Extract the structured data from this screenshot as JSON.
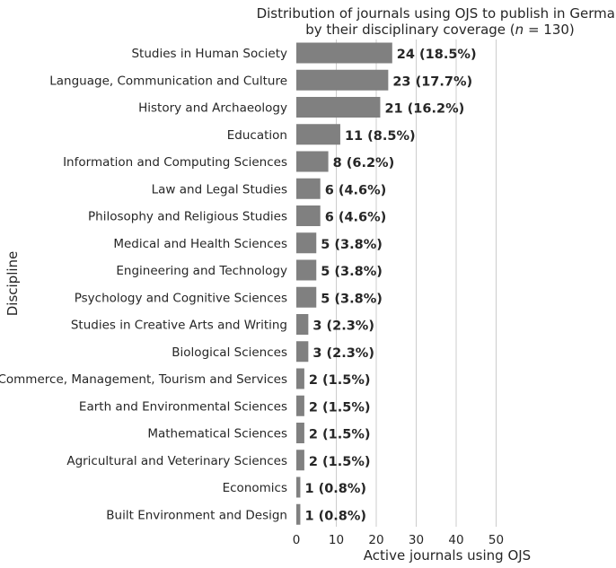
{
  "chart_data": {
    "type": "bar",
    "orientation": "horizontal",
    "title_line1": "Distribution of journals using OJS to publish in German",
    "title_line2_prefix": "by their disciplinary coverage (",
    "title_line2_italic": "n",
    "title_line2_suffix": " = 130)",
    "xlabel": "Active journals using OJS",
    "ylabel": "Discipline",
    "xlim": [
      0,
      56
    ],
    "xticks": [
      0,
      10,
      20,
      30,
      40,
      50
    ],
    "grid": "vertical",
    "bar_color": "#808080",
    "categories": [
      "Studies in Human Society",
      "Language, Communication and Culture",
      "History and Archaeology",
      "Education",
      "Information and Computing Sciences",
      "Law and Legal Studies",
      "Philosophy and Religious Studies",
      "Medical and Health Sciences",
      "Engineering and Technology",
      "Psychology and Cognitive Sciences",
      "Studies in Creative Arts and Writing",
      "Biological Sciences",
      "Commerce, Management, Tourism and Services",
      "Earth and Environmental Sciences",
      "Mathematical Sciences",
      "Agricultural and Veterinary Sciences",
      "Economics",
      "Built Environment and Design"
    ],
    "values": [
      24,
      23,
      21,
      11,
      8,
      6,
      6,
      5,
      5,
      5,
      3,
      3,
      2,
      2,
      2,
      2,
      1,
      1
    ],
    "value_labels": [
      "24 (18.5%)",
      "23 (17.7%)",
      "21 (16.2%)",
      "11 (8.5%)",
      "8 (6.2%)",
      "6 (4.6%)",
      "6 (4.6%)",
      "5 (3.8%)",
      "5 (3.8%)",
      "5 (3.8%)",
      "3 (2.3%)",
      "3 (2.3%)",
      "2 (1.5%)",
      "2 (1.5%)",
      "2 (1.5%)",
      "2 (1.5%)",
      "1 (0.8%)",
      "1 (0.8%)"
    ]
  }
}
